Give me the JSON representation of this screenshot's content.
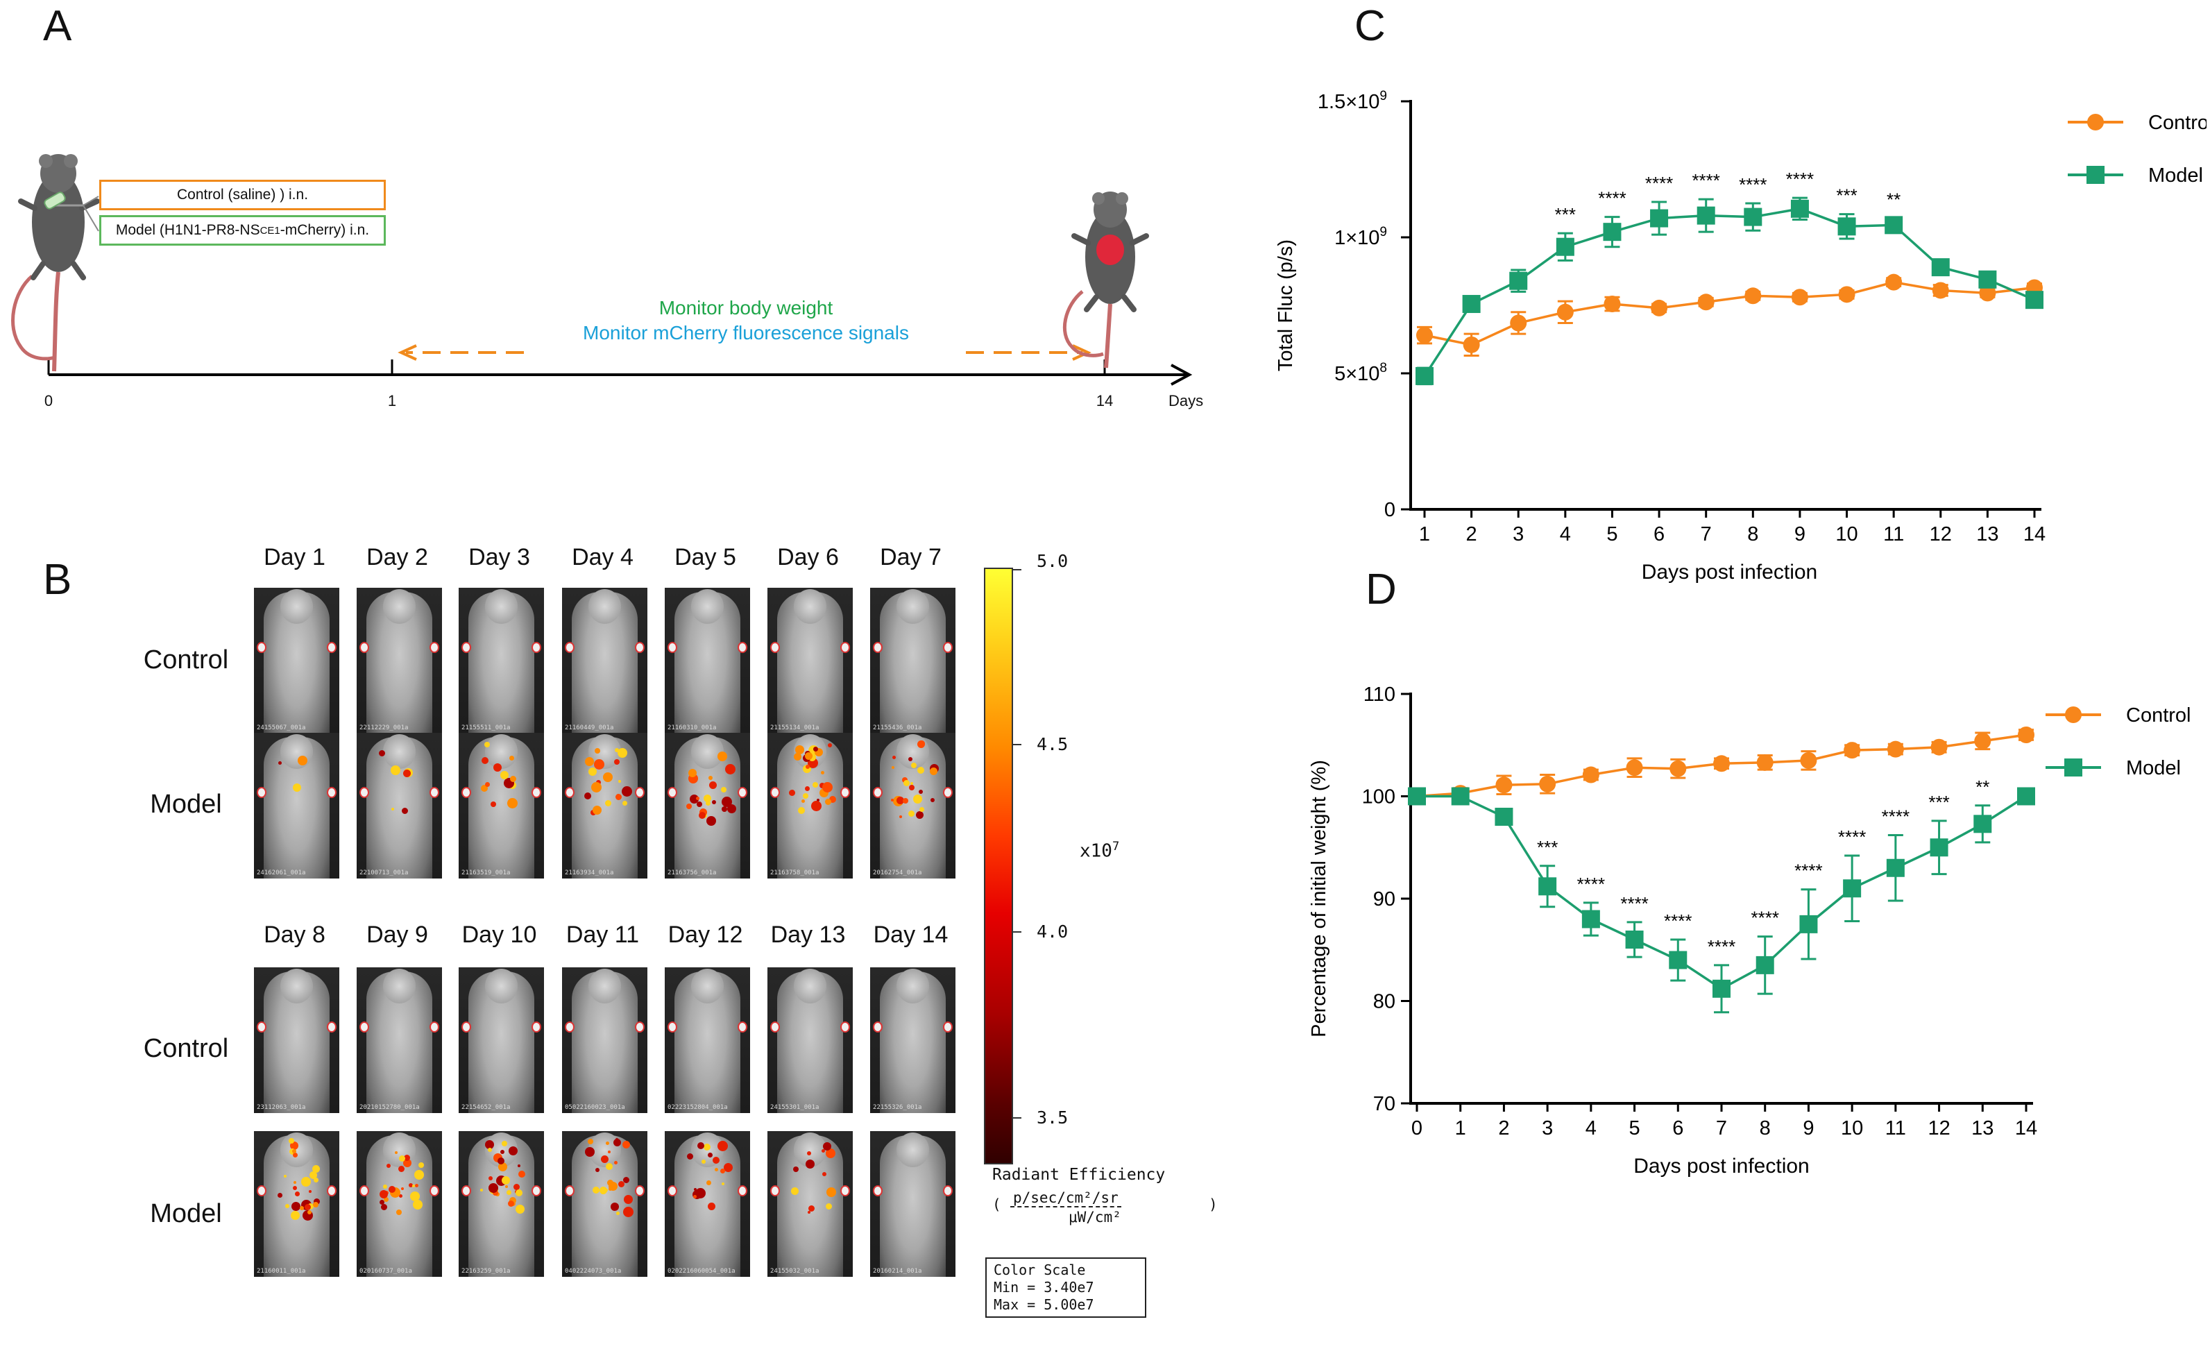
{
  "panels": {
    "a": "A",
    "b": "B",
    "c": "C",
    "d": "D"
  },
  "panel_a": {
    "control_box": "Control (saline) ) i.n.",
    "model_box_pre": "Model (H1N1-PR8-NS",
    "model_box_sub": "CE1",
    "model_box_post": "-mCherry) i.n.",
    "monitor_weight": "Monitor body weight",
    "monitor_fluor": "Monitor mCherry fluorescence signals",
    "tick_0": "0",
    "tick_1": "1",
    "tick_14": "14",
    "days": "Days",
    "colors": {
      "control": "#f08a1c",
      "model": "#5cb85c",
      "weight_text": "#1fa64a",
      "fluor_text": "#1aa0d8"
    }
  },
  "panel_b": {
    "days_top": [
      "Day 1",
      "Day 2",
      "Day 3",
      "Day 4",
      "Day 5",
      "Day 6",
      "Day 7"
    ],
    "days_bottom": [
      "Day 8",
      "Day 9",
      "Day 10",
      "Day 11",
      "Day 12",
      "Day 13",
      "Day 14"
    ],
    "row_control": "Control",
    "row_model": "Model",
    "scale_ticks": [
      "5.0",
      "4.5",
      "4.0",
      "3.5"
    ],
    "scale_multiplier": "x10",
    "scale_multiplier_exp": "7",
    "radiant_title": "Radiant Efficiency",
    "radiant_num": "p/sec/cm²/sr",
    "radiant_den": "μW/cm²",
    "color_scale_title": "Color Scale",
    "color_scale_min": "Min = 3.40e7",
    "color_scale_max": "Max = 5.00e7",
    "image_captions": [
      "24155067_001a",
      "22112229_001a",
      "21155511_001a",
      "21160449_001a",
      "21160310_001a",
      "21155134_001a",
      "21155436_001a",
      "24162061_001a",
      "22100713_001a",
      "21163519_001a",
      "21163934_001a",
      "21163756_001a",
      "21163758_001a",
      "20162754_001a",
      "23112063_001a",
      "20210152780_001a",
      "22154652_001a",
      "05022160023_001a",
      "02223152804_001a",
      "24155301_001a",
      "22155326_001a",
      "21160011_001a",
      "020160737_001a",
      "22163259_001a",
      "0402224073_001a",
      "0202216060054_001a",
      "24155032_001a",
      "20160214_001a"
    ]
  },
  "chart_data": [
    {
      "id": "C",
      "type": "line",
      "xlabel": "Days post infection",
      "ylabel": "Total Fluc (p/s)",
      "x": [
        1,
        2,
        3,
        4,
        5,
        6,
        7,
        8,
        9,
        10,
        11,
        12,
        13,
        14
      ],
      "ylim": [
        0,
        1500000000
      ],
      "yticks": [
        0,
        500000000,
        1000000000,
        1500000000
      ],
      "ytick_labels": [
        "0",
        "5×10",
        "1×10",
        "1.5×10"
      ],
      "ytick_exps": [
        "",
        "8",
        "9",
        "9"
      ],
      "series": [
        {
          "name": "Control",
          "color": "#f7861b",
          "marker": "circle",
          "values": [
            640000000,
            605000000,
            685000000,
            725000000,
            755000000,
            740000000,
            762000000,
            785000000,
            780000000,
            790000000,
            835000000,
            805000000,
            795000000,
            815000000
          ],
          "errors": [
            30000000,
            40000000,
            40000000,
            40000000,
            25000000,
            15000000,
            15000000,
            15000000,
            15000000,
            15000000,
            15000000,
            20000000,
            15000000,
            15000000
          ]
        },
        {
          "name": "Model",
          "color": "#1c9e6e",
          "marker": "square",
          "values": [
            490000000,
            755000000,
            840000000,
            965000000,
            1020000000,
            1070000000,
            1080000000,
            1075000000,
            1105000000,
            1040000000,
            1045000000,
            890000000,
            845000000,
            770000000
          ],
          "errors": [
            30000000,
            20000000,
            40000000,
            50000000,
            55000000,
            60000000,
            60000000,
            50000000,
            40000000,
            45000000,
            25000000,
            20000000,
            20000000,
            20000000
          ]
        }
      ],
      "annotations": [
        "",
        "",
        "",
        "***",
        "****",
        "****",
        "****",
        "****",
        "****",
        "***",
        "**",
        "",
        "",
        ""
      ]
    },
    {
      "id": "D",
      "type": "line",
      "xlabel": "Days post infection",
      "ylabel": "Percentage of initial weight (%)",
      "x": [
        0,
        1,
        2,
        3,
        4,
        5,
        6,
        7,
        8,
        9,
        10,
        11,
        12,
        13,
        14
      ],
      "ylim": [
        70,
        110
      ],
      "yticks": [
        70,
        80,
        90,
        100,
        110
      ],
      "series": [
        {
          "name": "Control",
          "color": "#f7861b",
          "marker": "circle",
          "values": [
            100,
            100.3,
            101.1,
            101.2,
            102.1,
            102.8,
            102.7,
            103.2,
            103.3,
            103.5,
            104.5,
            104.6,
            104.8,
            105.4,
            106
          ],
          "errors": [
            0.3,
            0.5,
            0.9,
            0.9,
            0.5,
            0.9,
            0.9,
            0.5,
            0.7,
            0.9,
            0.5,
            0.5,
            0.5,
            0.8,
            0.5
          ]
        },
        {
          "name": "Model",
          "color": "#1c9e6e",
          "marker": "square",
          "values": [
            100,
            100,
            98,
            91.2,
            88,
            86,
            84,
            81.2,
            83.5,
            87.5,
            91,
            93,
            95,
            97.3,
            100
          ],
          "errors": [
            0.3,
            0.3,
            0.5,
            2,
            1.6,
            1.7,
            2,
            2.3,
            2.8,
            3.4,
            3.2,
            3.2,
            2.6,
            1.8,
            0.5
          ]
        }
      ],
      "annotations": [
        "",
        "",
        "",
        "***",
        "****",
        "****",
        "****",
        "****",
        "****",
        "****",
        "****",
        "****",
        "***",
        "**",
        ""
      ]
    }
  ]
}
